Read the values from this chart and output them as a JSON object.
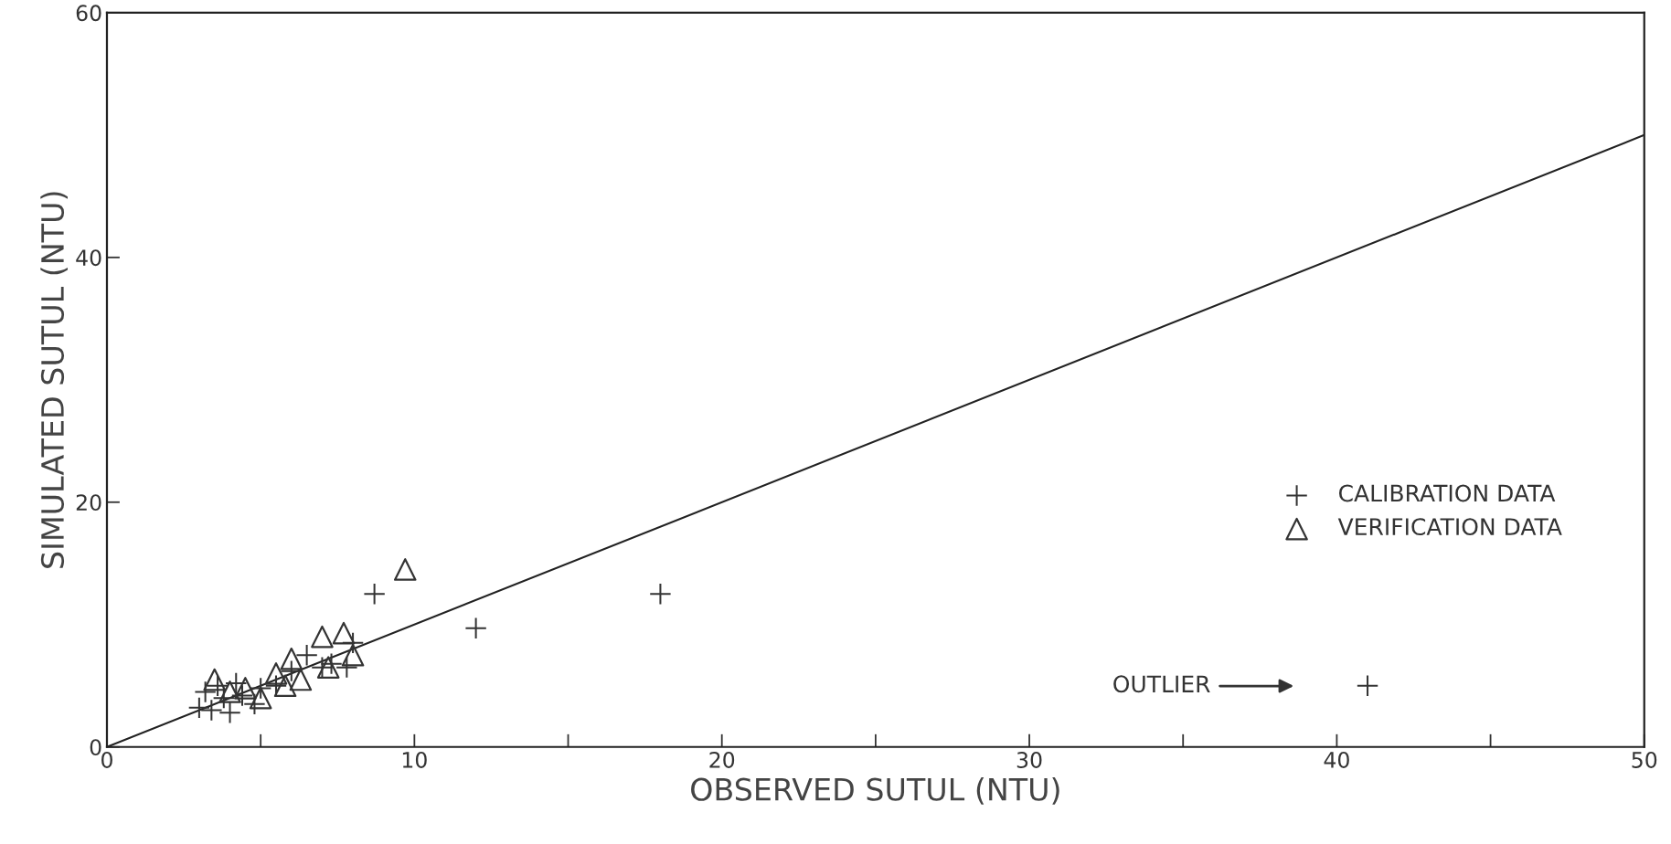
{
  "chart_data": {
    "type": "scatter",
    "xlabel": "OBSERVED SUTUL (NTU)",
    "ylabel": "SIMULATED SUTUL (NTU)",
    "xlim": [
      0,
      50
    ],
    "ylim": [
      0,
      60
    ],
    "xticks": [
      0,
      {
        "value": 5,
        "label": null
      },
      10,
      {
        "value": 15,
        "label": null
      },
      20,
      {
        "value": 25,
        "label": null
      },
      30,
      {
        "value": 35,
        "label": null
      },
      40,
      {
        "value": 45,
        "label": null
      },
      50
    ],
    "yticks": [
      0,
      20,
      40,
      60
    ],
    "grid": false,
    "legend": "right",
    "series": [
      {
        "name": "CALIBRATION DATA",
        "marker": "cross",
        "color": "#333333",
        "x": [
          3.0,
          3.2,
          3.4,
          3.6,
          3.8,
          4.0,
          4.2,
          4.4,
          4.8,
          5.0,
          5.5,
          6.0,
          6.5,
          7.0,
          7.3,
          7.8,
          8.0,
          8.7,
          12.0,
          18.0,
          41.0
        ],
        "values": [
          3.2,
          4.5,
          3.0,
          5.0,
          4.0,
          2.8,
          5.2,
          4.2,
          3.5,
          4.8,
          5.0,
          6.2,
          7.5,
          6.5,
          6.8,
          6.5,
          8.5,
          12.5,
          9.7,
          12.5,
          5.0
        ]
      },
      {
        "name": "VERIFICATION DATA",
        "marker": "triangle",
        "color": "#333333",
        "x": [
          3.5,
          4.0,
          4.5,
          5.0,
          5.5,
          5.8,
          6.0,
          6.3,
          7.0,
          7.2,
          7.7,
          8.0,
          9.7
        ],
        "values": [
          5.5,
          4.5,
          4.8,
          4.0,
          6.0,
          5.0,
          7.2,
          5.5,
          9.0,
          6.5,
          9.3,
          7.5,
          14.5
        ]
      },
      {
        "type": "line",
        "color": "#222222",
        "x": [
          0,
          50
        ],
        "values": [
          0,
          50
        ]
      }
    ],
    "annotations": [
      "OUTLIER"
    ]
  }
}
